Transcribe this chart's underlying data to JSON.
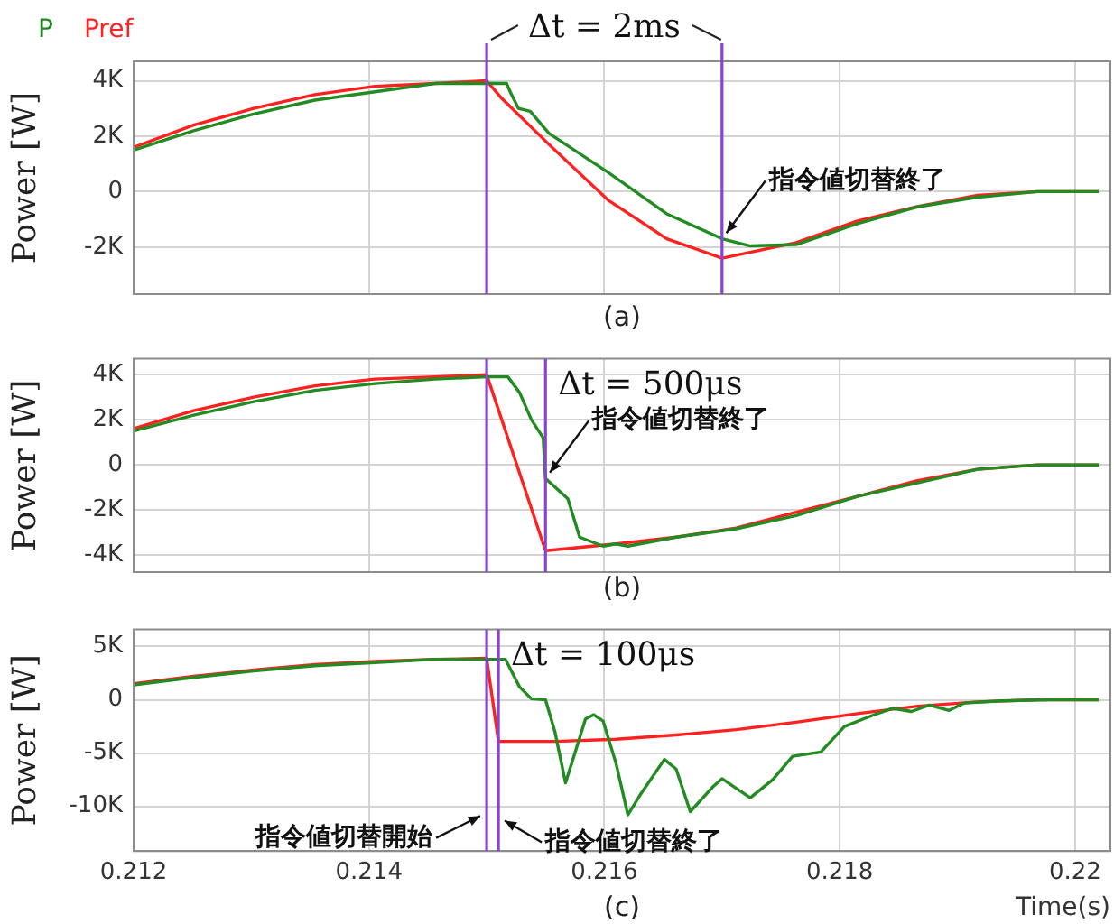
{
  "chart_data": [
    {
      "type": "line",
      "ylabel": "Power [W]",
      "legend": "top left",
      "grid": true,
      "tick_labels": "y",
      "xlim": [
        0.212,
        0.2203
      ],
      "xticks": [
        0.212,
        0.214,
        0.216,
        0.218,
        0.22
      ],
      "ylim": [
        -3700,
        4700
      ],
      "yticks": [
        {
          "value": -2000,
          "label": "-2K"
        },
        {
          "value": 0,
          "label": "0"
        },
        {
          "value": 2000,
          "label": "2K"
        },
        {
          "value": 4000,
          "label": "4K"
        }
      ],
      "series": [
        {
          "name": "P",
          "color": "#228b22",
          "x": [
            0.212,
            0.21251,
            0.21302,
            0.21354,
            0.21405,
            0.21456,
            0.215,
            0.21517,
            0.2152,
            0.21527,
            0.21537,
            0.21553,
            0.21603,
            0.21653,
            0.217,
            0.21724,
            0.21763,
            0.21815,
            0.21866,
            0.21917,
            0.21968,
            0.2202
          ],
          "values": [
            1500,
            2200,
            2800,
            3300,
            3600,
            3900,
            3900,
            3900,
            3600,
            3000,
            2900,
            2100,
            700,
            -800,
            -1700,
            -1960,
            -1910,
            -1160,
            -550,
            -200,
            0,
            0
          ]
        },
        {
          "name": "Pref",
          "color": "#ff2020",
          "x": [
            0.212,
            0.21251,
            0.21302,
            0.21354,
            0.21405,
            0.21456,
            0.215,
            0.21512,
            0.21553,
            0.21603,
            0.21653,
            0.217,
            0.21763,
            0.21815,
            0.21866,
            0.21917,
            0.21968,
            0.2202
          ],
          "values": [
            1600,
            2400,
            3000,
            3500,
            3800,
            3900,
            4000,
            3400,
            1700,
            -300,
            -1700,
            -2400,
            -1840,
            -1060,
            -540,
            -130,
            0,
            0
          ]
        }
      ],
      "ref_lines": [
        {
          "axis": "x",
          "value": 0.215,
          "color": "#8a44d0"
        },
        {
          "axis": "x",
          "value": 0.217,
          "color": "#8a44d0"
        }
      ],
      "annotations": [
        "Δt = 2ms",
        {
          "text": "指令値切替終了",
          "x": 0.217,
          "y": -1700
        },
        "(a)"
      ]
    },
    {
      "type": "line",
      "ylabel": "Power [W]",
      "grid": true,
      "tick_labels": "y",
      "xlim": [
        0.212,
        0.2203
      ],
      "xticks": [
        0.212,
        0.214,
        0.216,
        0.218,
        0.22
      ],
      "ylim": [
        -4750,
        4700
      ],
      "yticks": [
        {
          "value": -4000,
          "label": "-4K"
        },
        {
          "value": -2000,
          "label": "-2K"
        },
        {
          "value": 0,
          "label": "0"
        },
        {
          "value": 2000,
          "label": "2K"
        },
        {
          "value": 4000,
          "label": "4K"
        }
      ],
      "series": [
        {
          "color": "#228b22",
          "x": [
            0.212,
            0.21251,
            0.21302,
            0.21354,
            0.21405,
            0.21456,
            0.215,
            0.21518,
            0.21528,
            0.21538,
            0.21548,
            0.2155,
            0.21569,
            0.21579,
            0.21599,
            0.2161,
            0.2162,
            0.21661,
            0.21712,
            0.21763,
            0.21815,
            0.21866,
            0.21917,
            0.21968,
            0.2202
          ],
          "values": [
            1500,
            2200,
            2800,
            3300,
            3600,
            3800,
            3900,
            3900,
            3200,
            2000,
            1200,
            -600,
            -1500,
            -3200,
            -3600,
            -3500,
            -3600,
            -3200,
            -2830,
            -2250,
            -1400,
            -800,
            -200,
            0,
            0
          ]
        },
        {
          "color": "#ff2020",
          "x": [
            0.212,
            0.21251,
            0.21302,
            0.21354,
            0.21405,
            0.21456,
            0.215,
            0.2155,
            0.2161,
            0.21661,
            0.21712,
            0.21763,
            0.21815,
            0.21866,
            0.21917,
            0.21968,
            0.2202
          ],
          "values": [
            1600,
            2400,
            3000,
            3500,
            3800,
            3900,
            4000,
            -3800,
            -3500,
            -3200,
            -2800,
            -2100,
            -1400,
            -700,
            -200,
            0,
            0
          ]
        }
      ],
      "ref_lines": [
        {
          "axis": "x",
          "value": 0.215,
          "color": "#8a44d0"
        },
        {
          "axis": "x",
          "value": 0.2155,
          "color": "#8a44d0"
        }
      ],
      "annotations": [
        "Δt = 500μs",
        {
          "text": "指令値切替終了",
          "x": 0.2155,
          "y": -600
        },
        "(b)"
      ]
    },
    {
      "type": "line",
      "ylabel": "Power [W]",
      "xlabel": "Time(s)",
      "grid": true,
      "xlim": [
        0.212,
        0.2203
      ],
      "xticks": [
        0.212,
        0.214,
        0.216,
        0.218,
        0.22
      ],
      "ylim": [
        -14200,
        6600
      ],
      "yticks": [
        {
          "value": -10000,
          "label": "-10K"
        },
        {
          "value": -5000,
          "label": "-5K"
        },
        {
          "value": 0,
          "label": "0"
        },
        {
          "value": 5000,
          "label": "5K"
        }
      ],
      "series": [
        {
          "color": "#228b22",
          "x": [
            0.212,
            0.21251,
            0.21302,
            0.21354,
            0.21405,
            0.21456,
            0.215,
            0.21516,
            0.21528,
            0.21538,
            0.2155,
            0.21558,
            0.21567,
            0.21575,
            0.21584,
            0.21591,
            0.21599,
            0.2161,
            0.2162,
            0.2163,
            0.21651,
            0.21661,
            0.21673,
            0.21692,
            0.217,
            0.21712,
            0.21724,
            0.21743,
            0.2176,
            0.21784,
            0.21804,
            0.21827,
            0.21845,
            0.21861,
            0.21876,
            0.21893,
            0.21906,
            0.21937,
            0.21978,
            0.2202
          ],
          "values": [
            1400,
            2100,
            2700,
            3200,
            3500,
            3800,
            3800,
            3800,
            1200,
            100,
            0,
            -3000,
            -7800,
            -5000,
            -1800,
            -1400,
            -2000,
            -6000,
            -10800,
            -9000,
            -5600,
            -6500,
            -10500,
            -8200,
            -7400,
            -8300,
            -9200,
            -7500,
            -5300,
            -4900,
            -2500,
            -1500,
            -800,
            -1100,
            -500,
            -1000,
            -300,
            -100,
            0,
            0
          ]
        },
        {
          "color": "#ff2020",
          "x": [
            0.212,
            0.21251,
            0.21302,
            0.21354,
            0.21405,
            0.21456,
            0.215,
            0.2151,
            0.21558,
            0.2161,
            0.21661,
            0.21712,
            0.21763,
            0.21815,
            0.21866,
            0.21917,
            0.21968,
            0.2202
          ],
          "values": [
            1500,
            2200,
            2800,
            3300,
            3600,
            3800,
            3900,
            -3900,
            -3900,
            -3700,
            -3300,
            -2800,
            -2100,
            -1300,
            -600,
            -200,
            0,
            0
          ]
        }
      ],
      "ref_lines": [
        {
          "axis": "x",
          "value": 0.215,
          "color": "#8a44d0"
        },
        {
          "axis": "x",
          "value": 0.2151,
          "color": "#8a44d0"
        }
      ],
      "annotations": [
        "Δt = 100μs",
        {
          "text": "指令値切替開始",
          "x": 0.215,
          "y": -10600
        },
        {
          "text": "指令値切替終了",
          "x": 0.2151,
          "y": -11000
        },
        "(c)"
      ]
    }
  ]
}
